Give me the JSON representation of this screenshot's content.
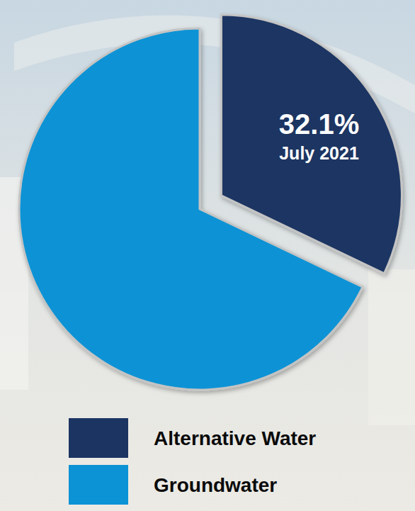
{
  "chart_data": {
    "type": "pie",
    "categories": [
      "Alternative Water",
      "Groundwater"
    ],
    "values": [
      32.1,
      67.9
    ],
    "value_labels": [
      "32.1%",
      null
    ],
    "annotation": "July 2021",
    "colors": [
      "#1b3462",
      "#0b93d5"
    ],
    "legend": "bottom"
  }
}
